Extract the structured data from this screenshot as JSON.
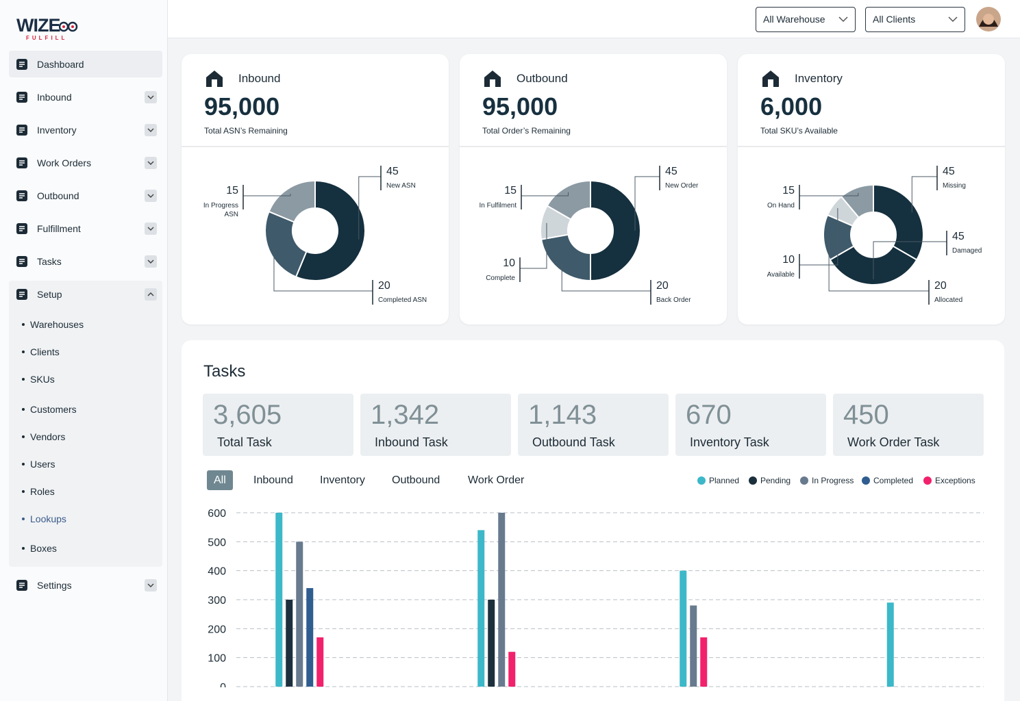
{
  "brand": {
    "name": "WIZE",
    "tagline": "FULFILL"
  },
  "header": {
    "warehouse": "All Warehouse",
    "client": "All Clients"
  },
  "nav": {
    "items": [
      "Dashboard",
      "Inbound",
      "Inventory",
      "Work Orders",
      "Outbound",
      "Fulfillment",
      "Tasks",
      "Setup"
    ],
    "setup_items": [
      "Warehouses",
      "Clients",
      "SKUs",
      "Customers",
      "Vendors",
      "Users",
      "Roles",
      "Lookups",
      "Boxes"
    ],
    "settings": "Settings"
  },
  "cards": [
    {
      "title": "Inbound",
      "value": "95,000",
      "subtitle": "Total ASN’s Remaining",
      "chart": {
        "type": "donut",
        "categories": [
          "New ASN",
          "Completed ASN",
          "In Progress ASN"
        ],
        "values": [
          45,
          20,
          15
        ],
        "colors": [
          "#15303f",
          "#3f5a6a",
          "#8b9aa3"
        ]
      }
    },
    {
      "title": "Outbound",
      "value": "95,000",
      "subtitle": "Total Order’s Remaining",
      "chart": {
        "type": "donut",
        "categories": [
          "New Order",
          "Back Order",
          "Complete",
          "In Fulfilment"
        ],
        "values": [
          45,
          20,
          10,
          15
        ],
        "colors": [
          "#15303f",
          "#3f5a6a",
          "#cfd6da",
          "#8b9aa3"
        ]
      }
    },
    {
      "title": "Inventory",
      "value": "6,000",
      "subtitle": "Total SKU’s Available",
      "chart": {
        "type": "donut",
        "categories": [
          "Missing",
          "Damaged",
          "Allocated",
          "Available",
          "On Hand"
        ],
        "values": [
          45,
          45,
          20,
          10,
          15
        ],
        "colors": [
          "#15303f",
          "#15303f",
          "#3f5a6a",
          "#cfd6da",
          "#8b9aa3"
        ]
      }
    }
  ],
  "tasks": {
    "title": "Tasks",
    "stats": [
      {
        "value": "3,605",
        "label": "Total Task"
      },
      {
        "value": "1,342",
        "label": "Inbound Task"
      },
      {
        "value": "1,143",
        "label": "Outbound Task"
      },
      {
        "value": "670",
        "label": "Inventory Task"
      },
      {
        "value": "450",
        "label": "Work Order Task"
      }
    ],
    "tabs": [
      "All",
      "Inbound",
      "Inventory",
      "Outbound",
      "Work Order"
    ],
    "active_tab": 0,
    "chart": {
      "type": "bar",
      "categories": [
        null,
        null,
        null,
        null
      ],
      "series": [
        {
          "name": "Planned",
          "color": "#3cb8c9",
          "values": [
            600,
            540,
            400,
            290
          ]
        },
        {
          "name": "Pending",
          "color": "#1c2f3d",
          "values": [
            300,
            300,
            null,
            null
          ]
        },
        {
          "name": "In Progress",
          "color": "#687a8e",
          "values": [
            500,
            600,
            280,
            null
          ]
        },
        {
          "name": "Completed",
          "color": "#2f5d8f",
          "values": [
            340,
            null,
            null,
            null
          ]
        },
        {
          "name": "Exceptions",
          "color": "#f2216c",
          "values": [
            170,
            120,
            170,
            null
          ]
        }
      ],
      "ylim": [
        0,
        600
      ],
      "yticks": [
        0,
        100,
        200,
        300,
        400,
        500,
        600
      ],
      "grid": true
    }
  }
}
